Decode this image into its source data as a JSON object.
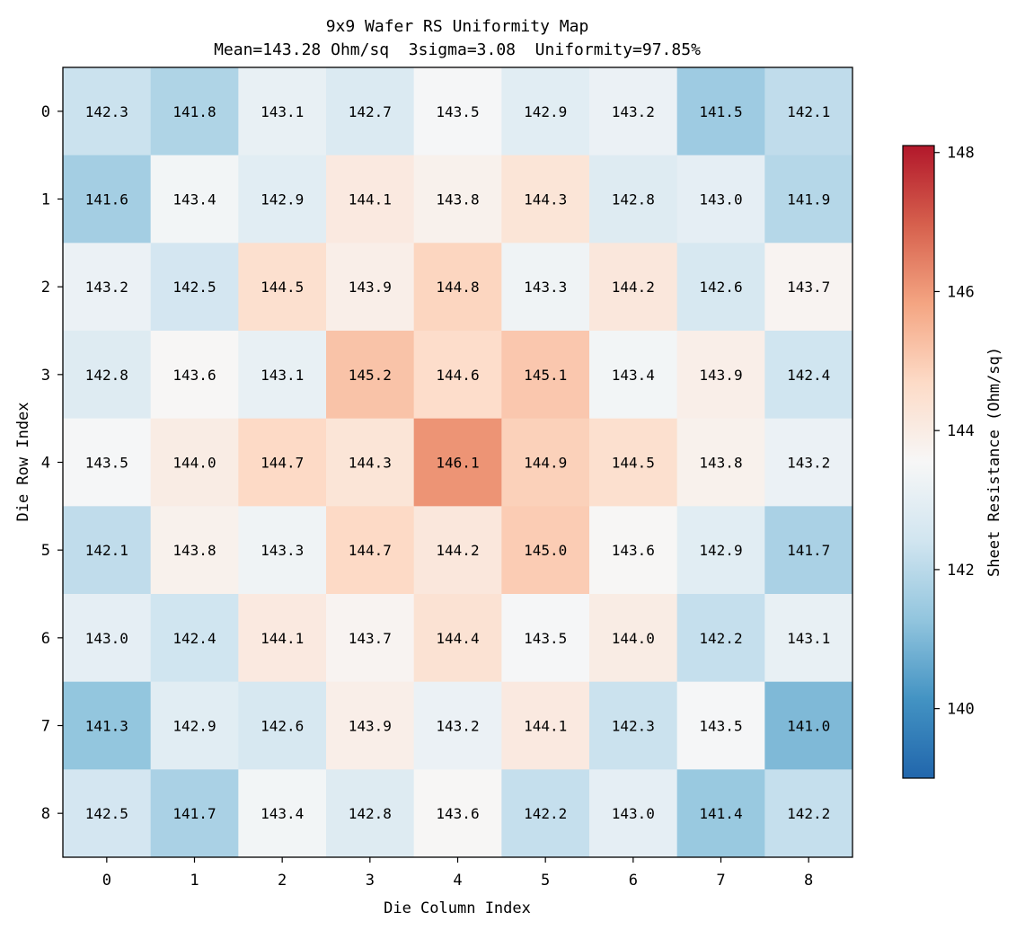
{
  "chart_data": {
    "type": "heatmap",
    "title": "9x9 Wafer RS Uniformity Map",
    "subtitle": "Mean=143.28 Ohm/sq  3sigma=3.08  Uniformity=97.85%",
    "xlabel": "Die Column Index",
    "ylabel": "Die Row Index",
    "x_ticks": [
      "0",
      "1",
      "2",
      "3",
      "4",
      "5",
      "6",
      "7",
      "8"
    ],
    "y_ticks": [
      "0",
      "1",
      "2",
      "3",
      "4",
      "5",
      "6",
      "7",
      "8"
    ],
    "values": [
      [
        142.3,
        141.8,
        143.1,
        142.7,
        143.5,
        142.9,
        143.2,
        141.5,
        142.1
      ],
      [
        141.6,
        143.4,
        142.9,
        144.1,
        143.8,
        144.3,
        142.8,
        143.0,
        141.9
      ],
      [
        143.2,
        142.5,
        144.5,
        143.9,
        144.8,
        143.3,
        144.2,
        142.6,
        143.7
      ],
      [
        142.8,
        143.6,
        143.1,
        145.2,
        144.6,
        145.1,
        143.4,
        143.9,
        142.4
      ],
      [
        143.5,
        144.0,
        144.7,
        144.3,
        146.1,
        144.9,
        144.5,
        143.8,
        143.2
      ],
      [
        142.1,
        143.8,
        143.3,
        144.7,
        144.2,
        145.0,
        143.6,
        142.9,
        141.7
      ],
      [
        143.0,
        142.4,
        144.1,
        143.7,
        144.4,
        143.5,
        144.0,
        142.2,
        143.1
      ],
      [
        141.3,
        142.9,
        142.6,
        143.9,
        143.2,
        144.1,
        142.3,
        143.5,
        141.0
      ],
      [
        142.5,
        141.7,
        143.4,
        142.8,
        143.6,
        142.2,
        143.0,
        141.4,
        142.2
      ]
    ],
    "value_format": "1 decimal",
    "colormap": "RdBu_r",
    "colormap_stops": [
      "#2166ac",
      "#4393c3",
      "#92c5de",
      "#d1e5f0",
      "#f7f7f7",
      "#fddbc7",
      "#f4a582",
      "#d6604d",
      "#b2182b"
    ],
    "vmin": 139.0,
    "vmax": 148.1,
    "colorbar": {
      "label": "Sheet Resistance (Ohm/sq)",
      "ticks": [
        140,
        142,
        144,
        146,
        148
      ],
      "placement": "right"
    },
    "grid": false
  }
}
